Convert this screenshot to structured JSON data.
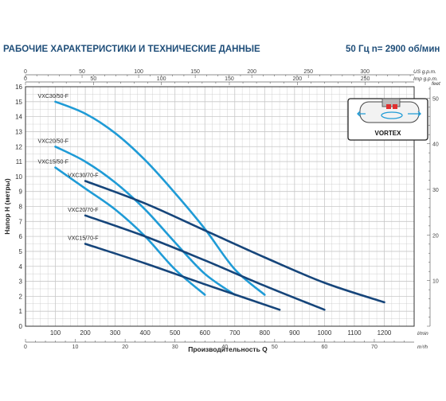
{
  "header": {
    "title": "РАБОЧИЕ ХАРАКТЕРИСТИКИ И ТЕХНИЧЕСКИЕ ДАННЫЕ",
    "freq": "50 Гц  n= 2900 об/мин"
  },
  "colors": {
    "accent": "#1f4e79",
    "light_series": "#1f9bd6",
    "dark_series": "#16457a",
    "grid": "#c8c8c8"
  },
  "chart_data": {
    "type": "line",
    "xlabel": "Производительность Q",
    "ylabel": "Напор H (метры)",
    "x_unit": "l/min",
    "xlim": [
      0,
      1300
    ],
    "ylim": [
      0,
      16
    ],
    "x_ticks": [
      "100",
      "200",
      "300",
      "400",
      "500",
      "600",
      "700",
      "800",
      "900",
      "1000",
      "1100",
      "1200"
    ],
    "y_ticks": [
      "0",
      "1",
      "2",
      "3",
      "4",
      "5",
      "6",
      "7",
      "8",
      "9",
      "10",
      "11",
      "12",
      "13",
      "14",
      "15",
      "16"
    ],
    "top_axes": [
      {
        "unit": "US g.p.m.",
        "ticks": [
          "0",
          "50",
          "100",
          "150",
          "200",
          "250",
          "300"
        ]
      },
      {
        "unit": "Imp g.p.m.",
        "ticks": [
          "0",
          "50",
          "100",
          "150",
          "200",
          "250"
        ]
      }
    ],
    "bottom_axis": {
      "unit": "m³/h",
      "ticks": [
        "0",
        "10",
        "20",
        "30",
        "40",
        "50",
        "60",
        "70"
      ]
    },
    "right_axis": {
      "unit": "feet",
      "ticks": [
        "10",
        "20",
        "30",
        "40",
        "50"
      ]
    },
    "series": [
      {
        "name": "VXC30/50-F",
        "style": "light",
        "x": [
          100,
          200,
          300,
          400,
          500,
          600,
          700,
          800
        ],
        "y": [
          15,
          14.2,
          12.9,
          11.1,
          8.9,
          6.5,
          3.8,
          2.1
        ]
      },
      {
        "name": "VXC20/50-F",
        "style": "light",
        "x": [
          100,
          200,
          300,
          400,
          500,
          600,
          700
        ],
        "y": [
          12,
          11,
          9.6,
          7.8,
          5.6,
          3.5,
          2.1
        ]
      },
      {
        "name": "VXC15/50-F",
        "style": "light",
        "x": [
          100,
          200,
          300,
          400,
          500,
          600
        ],
        "y": [
          10.6,
          9.2,
          7.8,
          6,
          3.8,
          2.1
        ]
      },
      {
        "name": "VXC30/70-F",
        "style": "dark",
        "x": [
          200,
          400,
          600,
          800,
          1000,
          1200
        ],
        "y": [
          9.7,
          8.2,
          6.4,
          4.6,
          2.9,
          1.6
        ]
      },
      {
        "name": "VXC20/70-F",
        "style": "dark",
        "x": [
          200,
          400,
          600,
          800,
          1000
        ],
        "y": [
          7.4,
          6,
          4.4,
          2.7,
          1.1
        ]
      },
      {
        "name": "VXC15/70-F",
        "style": "dark",
        "x": [
          200,
          400,
          600,
          850
        ],
        "y": [
          5.5,
          4.2,
          2.8,
          1.1
        ]
      }
    ]
  },
  "badge": {
    "label": "VORTEX"
  }
}
